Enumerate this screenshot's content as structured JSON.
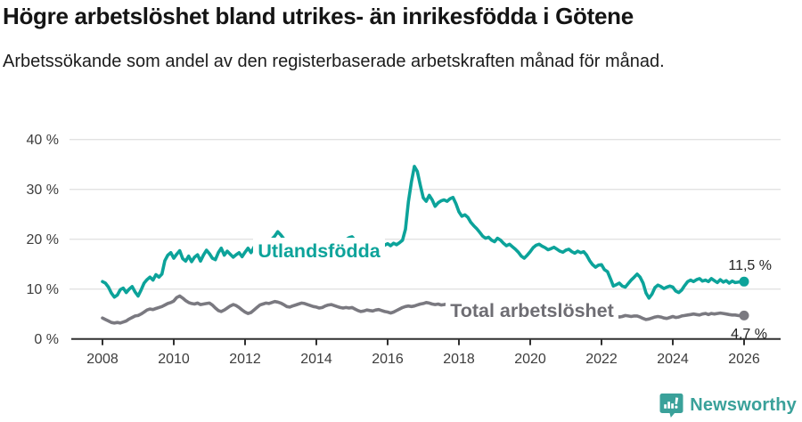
{
  "title": "Högre arbetslöshet bland utrikes- än inrikesfödda i Götene",
  "subtitle": "Arbetssökande som andel av den registerbaserade arbetskraften månad för månad.",
  "chart_data": {
    "type": "line",
    "x_start_year": 2008,
    "x_step_months": 1,
    "x_axis": {
      "ticks": [
        2008,
        2010,
        2012,
        2014,
        2016,
        2018,
        2020,
        2022,
        2024,
        2026
      ],
      "range": [
        2007.1,
        2027.0
      ]
    },
    "y_axis": {
      "tick_values": [
        0,
        10,
        20,
        30,
        40
      ],
      "tick_labels": [
        "0 %",
        "10 %",
        "20 %",
        "30 %",
        "40 %"
      ],
      "range": [
        0,
        40
      ],
      "grid": true
    },
    "legend_position": "inline-labels",
    "series": [
      {
        "name": "Utlandsfödda",
        "color": "#0ca39a",
        "label_color": "#0ca39a",
        "end_label": "11,5 %",
        "end_value": 11.5,
        "values": [
          11.5,
          11.2,
          10.4,
          9.2,
          8.4,
          8.8,
          9.9,
          10.2,
          9.3,
          10.0,
          10.5,
          9.4,
          8.6,
          9.8,
          11.2,
          11.9,
          12.4,
          11.8,
          12.9,
          12.4,
          13.0,
          15.7,
          16.8,
          17.3,
          16.2,
          17.0,
          17.7,
          16.1,
          15.6,
          16.6,
          15.5,
          16.4,
          16.9,
          15.6,
          16.8,
          17.8,
          17.1,
          16.2,
          15.9,
          17.3,
          18.2,
          16.8,
          17.6,
          17.0,
          16.4,
          16.9,
          17.3,
          16.5,
          17.4,
          18.2,
          17.3,
          18.4,
          19.1,
          19.4,
          19.2,
          18.9,
          19.6,
          20.0,
          20.6,
          21.5,
          20.9,
          20.1,
          19.4,
          18.5,
          18.8,
          19.0,
          18.4,
          18.2,
          18.6,
          18.3,
          18.7,
          18.9,
          18.3,
          17.9,
          18.3,
          18.6,
          18.1,
          18.5,
          18.9,
          18.4,
          18.8,
          19.3,
          19.9,
          20.3,
          20.5,
          19.8,
          19.2,
          19.6,
          19.1,
          18.8,
          18.5,
          18.8,
          19.1,
          18.7,
          19.0,
          18.8,
          19.1,
          18.7,
          19.2,
          18.9,
          19.3,
          19.8,
          22.0,
          27.5,
          31.5,
          34.6,
          33.6,
          30.8,
          28.3,
          27.6,
          28.8,
          27.9,
          26.6,
          27.3,
          27.7,
          27.9,
          27.6,
          28.1,
          28.4,
          27.1,
          25.5,
          24.6,
          24.9,
          24.4,
          23.4,
          22.7,
          22.1,
          21.4,
          20.6,
          20.2,
          20.4,
          19.8,
          19.5,
          20.2,
          19.8,
          19.2,
          18.7,
          19.0,
          18.5,
          18.0,
          17.4,
          16.6,
          16.2,
          16.8,
          17.5,
          18.3,
          18.8,
          19.0,
          18.6,
          18.3,
          17.9,
          18.1,
          18.4,
          18.0,
          17.6,
          17.4,
          17.8,
          18.0,
          17.5,
          17.2,
          17.6,
          17.3,
          17.5,
          16.8,
          15.7,
          14.9,
          14.4,
          14.8,
          14.9,
          13.9,
          13.5,
          12.1,
          10.6,
          10.9,
          11.2,
          10.6,
          10.4,
          11.1,
          11.8,
          12.4,
          13.0,
          12.4,
          11.2,
          9.2,
          8.2,
          9.0,
          10.3,
          10.8,
          10.5,
          10.1,
          10.4,
          10.6,
          10.4,
          9.6,
          9.3,
          9.8,
          10.7,
          11.5,
          11.8,
          11.5,
          11.9,
          12.1,
          11.6,
          11.8,
          11.5,
          12.1,
          11.7,
          11.3,
          11.9,
          11.4,
          11.7,
          11.2,
          11.6,
          11.3,
          11.4,
          11.5,
          11.5
        ]
      },
      {
        "name": "Total arbetslöshet",
        "color": "#7a7980",
        "label_color": "#6e6d73",
        "end_label": "4,7 %",
        "end_value": 4.7,
        "values": [
          4.2,
          3.9,
          3.6,
          3.3,
          3.2,
          3.3,
          3.2,
          3.4,
          3.6,
          4.0,
          4.3,
          4.6,
          4.7,
          5.0,
          5.4,
          5.8,
          6.0,
          5.9,
          6.1,
          6.3,
          6.5,
          6.8,
          7.1,
          7.3,
          7.6,
          8.3,
          8.6,
          8.2,
          7.7,
          7.3,
          7.1,
          7.0,
          7.2,
          6.9,
          7.0,
          7.1,
          7.2,
          6.8,
          6.2,
          5.7,
          5.5,
          5.8,
          6.2,
          6.6,
          6.9,
          6.7,
          6.3,
          5.8,
          5.4,
          5.1,
          5.3,
          5.8,
          6.3,
          6.8,
          7.0,
          7.2,
          7.1,
          7.3,
          7.5,
          7.4,
          7.2,
          6.9,
          6.5,
          6.4,
          6.6,
          6.8,
          7.0,
          7.2,
          7.1,
          6.9,
          6.7,
          6.5,
          6.4,
          6.2,
          6.3,
          6.6,
          6.8,
          6.9,
          6.7,
          6.5,
          6.3,
          6.2,
          6.3,
          6.2,
          6.3,
          6.0,
          5.7,
          5.5,
          5.6,
          5.8,
          5.7,
          5.6,
          5.8,
          5.9,
          5.7,
          5.5,
          5.4,
          5.2,
          5.4,
          5.7,
          6.0,
          6.3,
          6.5,
          6.6,
          6.5,
          6.6,
          6.8,
          7.0,
          7.1,
          7.3,
          7.2,
          7.0,
          6.9,
          7.0,
          6.8,
          6.9,
          7.0,
          6.8,
          6.6,
          6.4,
          6.2,
          6.0,
          5.9,
          5.8,
          5.7,
          5.6,
          5.5,
          5.4,
          5.3,
          5.2,
          5.2,
          5.1,
          5.0,
          5.1,
          5.0,
          4.9,
          4.8,
          4.9,
          4.8,
          4.7,
          4.6,
          4.5,
          4.6,
          4.7,
          4.9,
          5.1,
          5.4,
          5.6,
          5.7,
          5.8,
          5.7,
          5.6,
          5.5,
          5.4,
          5.2,
          5.1,
          5.0,
          4.9,
          4.8,
          4.7,
          4.6,
          4.7,
          4.6,
          4.5,
          4.4,
          4.3,
          4.2,
          4.3,
          4.3,
          4.2,
          4.1,
          4.2,
          4.4,
          4.6,
          4.4,
          4.5,
          4.7,
          4.6,
          4.5,
          4.6,
          4.6,
          4.4,
          4.1,
          3.9,
          4.0,
          4.2,
          4.4,
          4.5,
          4.4,
          4.2,
          4.1,
          4.3,
          4.5,
          4.3,
          4.4,
          4.6,
          4.7,
          4.8,
          4.9,
          5.0,
          4.9,
          4.8,
          5.0,
          5.1,
          4.9,
          5.1,
          5.0,
          5.1,
          5.2,
          5.1,
          5.0,
          4.9,
          4.8,
          4.8,
          4.7,
          4.7,
          4.7
        ]
      }
    ],
    "colors": {
      "grid": "#e2e2e2",
      "axis": "#303030",
      "axis_text": "#3d3d3d",
      "value_label_text": "#222222"
    }
  },
  "footer": {
    "brand": "Newsworthy",
    "brand_color": "#3aa19a",
    "logo_icon": "bar-chart-speech-bubble-icon"
  }
}
